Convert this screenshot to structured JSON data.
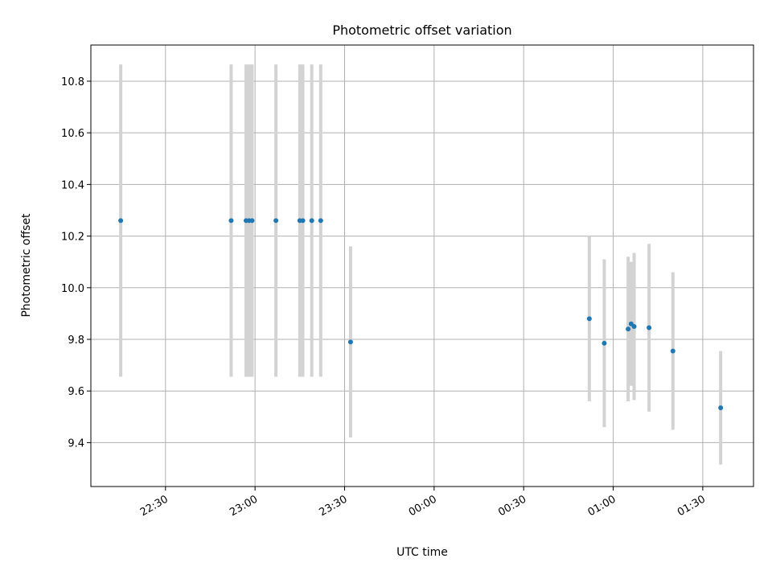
{
  "chart_data": {
    "type": "scatter",
    "title": "Photometric offset variation",
    "xlabel": "UTC time",
    "ylabel": "Photometric offset",
    "x_axis": {
      "kind": "time",
      "tick_values": [
        "22:30",
        "23:00",
        "23:30",
        "00:00",
        "00:30",
        "01:00",
        "01:30"
      ],
      "tick_labels": [
        "22:30",
        "23:00",
        "23:30",
        "00:00",
        "00:30",
        "01:00",
        "01:30"
      ],
      "xlim": [
        "22:05",
        "01:47"
      ]
    },
    "y_axis": {
      "ylim": [
        9.23,
        10.94
      ],
      "ticks": [
        9.4,
        9.6,
        9.8,
        10.0,
        10.2,
        10.4,
        10.6,
        10.8
      ],
      "tick_labels": [
        "9.4",
        "9.6",
        "9.8",
        "10.0",
        "10.2",
        "10.4",
        "10.6",
        "10.8"
      ]
    },
    "grid": true,
    "legend": "none",
    "colors": {
      "points": "#1f77b4",
      "errorbars": "#d3d3d3",
      "grid": "#b0b0b0"
    },
    "series": [
      {
        "x": [
          "22:15",
          "22:52",
          "22:57",
          "22:58",
          "22:59",
          "23:07",
          "23:15",
          "23:16",
          "23:19",
          "23:22",
          "23:32",
          "00:52",
          "00:57",
          "01:05",
          "01:06",
          "01:07",
          "01:12",
          "01:20",
          "01:36"
        ],
        "y": [
          10.26,
          10.26,
          10.26,
          10.26,
          10.26,
          10.26,
          10.26,
          10.26,
          10.26,
          10.26,
          9.79,
          9.88,
          9.785,
          9.84,
          9.86,
          9.85,
          9.845,
          9.755,
          9.535
        ],
        "yerr": [
          0.605,
          0.605,
          0.605,
          0.605,
          0.605,
          0.605,
          0.605,
          0.605,
          0.605,
          0.605,
          0.37,
          0.32,
          0.325,
          0.28,
          0.24,
          0.285,
          0.325,
          0.305,
          0.22
        ]
      }
    ]
  }
}
